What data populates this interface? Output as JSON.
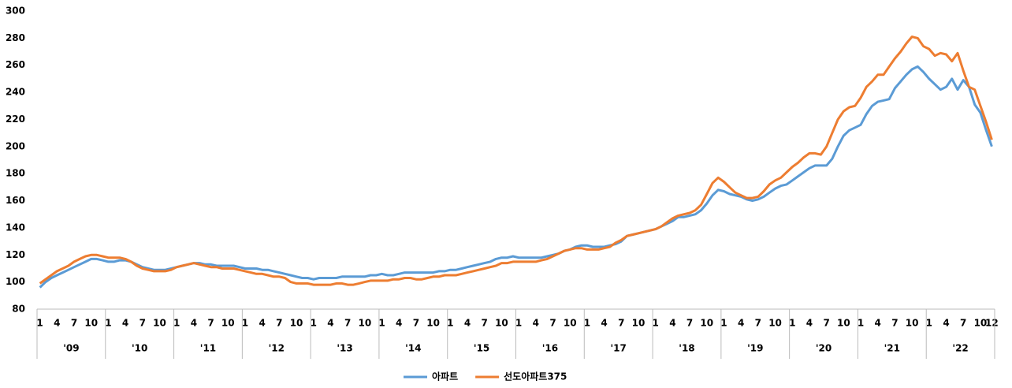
{
  "chart_data": {
    "type": "line",
    "categories": [
      "1",
      null,
      null,
      "4",
      null,
      null,
      "7",
      null,
      null,
      "10",
      null,
      null,
      "1",
      null,
      null,
      "4",
      null,
      null,
      "7",
      null,
      null,
      "10",
      null,
      null,
      "1",
      null,
      null,
      "4",
      null,
      null,
      "7",
      null,
      null,
      "10",
      null,
      null,
      "1",
      null,
      null,
      "4",
      null,
      null,
      "7",
      null,
      null,
      "10",
      null,
      null,
      "1",
      null,
      null,
      "4",
      null,
      null,
      "7",
      null,
      null,
      "10",
      null,
      null,
      "1",
      null,
      null,
      "4",
      null,
      null,
      "7",
      null,
      null,
      "10",
      null,
      null,
      "1",
      null,
      null,
      "4",
      null,
      null,
      "7",
      null,
      null,
      "10",
      null,
      null,
      "1",
      null,
      null,
      "4",
      null,
      null,
      "7",
      null,
      null,
      "10",
      null,
      null,
      "1",
      null,
      null,
      "4",
      null,
      null,
      "7",
      null,
      null,
      "10",
      null,
      null,
      "1",
      null,
      null,
      "4",
      null,
      null,
      "7",
      null,
      null,
      "10",
      null,
      null,
      "1",
      null,
      null,
      "4",
      null,
      null,
      "7",
      null,
      null,
      "10",
      null,
      null,
      "1",
      null,
      null,
      "4",
      null,
      null,
      "7",
      null,
      null,
      "10",
      null,
      null,
      "1",
      null,
      null,
      "4",
      null,
      null,
      "7",
      null,
      null,
      "10",
      null,
      null,
      "1",
      null,
      null,
      "4",
      null,
      null,
      "7",
      null,
      null,
      "10",
      null,
      "12"
    ],
    "groups": [
      "'09",
      "'10",
      "'11",
      "'12",
      "'13",
      "'14",
      "'15",
      "'16",
      "'17",
      "'18",
      "'19",
      "'20",
      "'21",
      "'22"
    ],
    "series": [
      {
        "name": "아파트",
        "color": "#5b9bd5",
        "values": [
          96,
          100,
          103,
          105,
          107,
          109,
          111,
          113,
          115,
          117,
          117,
          116,
          115,
          115,
          116,
          116,
          115,
          113,
          111,
          110,
          109,
          109,
          109,
          110,
          111,
          112,
          113,
          114,
          114,
          113,
          113,
          112,
          112,
          112,
          112,
          111,
          110,
          110,
          110,
          109,
          109,
          108,
          107,
          106,
          105,
          104,
          103,
          103,
          102,
          103,
          103,
          103,
          103,
          104,
          104,
          104,
          104,
          104,
          105,
          105,
          106,
          105,
          105,
          106,
          107,
          107,
          107,
          107,
          107,
          107,
          108,
          108,
          109,
          109,
          110,
          111,
          112,
          113,
          114,
          115,
          117,
          118,
          118,
          119,
          118,
          118,
          118,
          118,
          118,
          119,
          120,
          121,
          123,
          124,
          126,
          127,
          127,
          126,
          126,
          126,
          127,
          128,
          130,
          134,
          135,
          136,
          137,
          138,
          139,
          141,
          143,
          145,
          148,
          148,
          149,
          150,
          153,
          158,
          164,
          168,
          167,
          165,
          164,
          163,
          161,
          160,
          161,
          163,
          166,
          169,
          171,
          172,
          175,
          178,
          181,
          184,
          186,
          186,
          186,
          191,
          200,
          208,
          212,
          214,
          216,
          224,
          230,
          233,
          234,
          235,
          243,
          248,
          253,
          257,
          259,
          255,
          250,
          246,
          242,
          244,
          250,
          242,
          249,
          244,
          231,
          225,
          212,
          200
        ]
      },
      {
        "name": "선도아파트375",
        "color": "#ed7d31",
        "values": [
          99,
          102,
          105,
          108,
          110,
          112,
          115,
          117,
          119,
          120,
          120,
          119,
          118,
          118,
          118,
          117,
          115,
          112,
          110,
          109,
          108,
          108,
          108,
          109,
          111,
          112,
          113,
          114,
          113,
          112,
          111,
          111,
          110,
          110,
          110,
          109,
          108,
          107,
          106,
          106,
          105,
          104,
          104,
          103,
          100,
          99,
          99,
          99,
          98,
          98,
          98,
          98,
          99,
          99,
          98,
          98,
          99,
          100,
          101,
          101,
          101,
          101,
          102,
          102,
          103,
          103,
          102,
          102,
          103,
          104,
          104,
          105,
          105,
          105,
          106,
          107,
          108,
          109,
          110,
          111,
          112,
          114,
          114,
          115,
          115,
          115,
          115,
          115,
          116,
          117,
          119,
          121,
          123,
          124,
          125,
          125,
          124,
          124,
          124,
          125,
          126,
          129,
          131,
          134,
          135,
          136,
          137,
          138,
          139,
          141,
          144,
          147,
          149,
          150,
          151,
          153,
          157,
          165,
          173,
          177,
          174,
          170,
          166,
          164,
          162,
          162,
          163,
          167,
          172,
          175,
          177,
          181,
          185,
          188,
          192,
          195,
          195,
          194,
          200,
          210,
          220,
          226,
          229,
          230,
          236,
          244,
          248,
          253,
          253,
          259,
          265,
          270,
          276,
          281,
          280,
          274,
          272,
          267,
          269,
          268,
          263,
          269,
          256,
          244,
          242,
          230,
          218,
          205
        ]
      }
    ],
    "ylim": [
      80,
      300
    ],
    "yticks": [
      80,
      100,
      120,
      140,
      160,
      180,
      200,
      220,
      240,
      260,
      280,
      300
    ],
    "grid": false,
    "legend": "bottom"
  }
}
